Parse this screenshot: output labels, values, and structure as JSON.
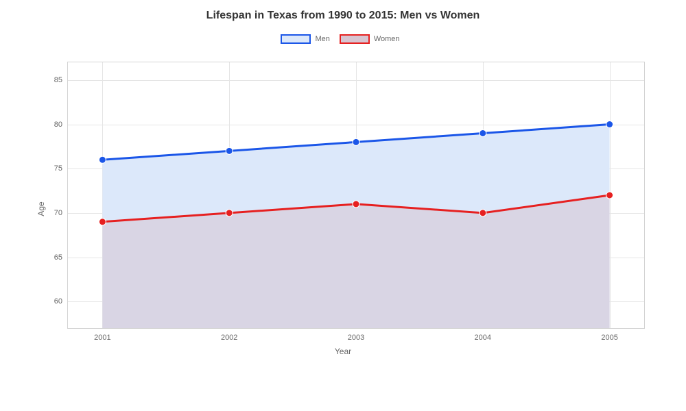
{
  "chart": {
    "type": "area-line",
    "title": "Lifespan in Texas from 1990 to 2015: Men vs Women",
    "title_fontsize": 16,
    "title_color": "#333333",
    "background_color": "#ffffff",
    "grid_color": "#e5e5e5",
    "border_color": "#d3d3d3",
    "x": {
      "label": "Year",
      "categories": [
        "2001",
        "2002",
        "2003",
        "2004",
        "2005"
      ],
      "label_fontsize": 12,
      "tick_fontsize": 11,
      "tick_color": "#666666"
    },
    "y": {
      "label": "Age",
      "min": 57,
      "max": 87,
      "ticks": [
        60,
        65,
        70,
        75,
        80,
        85
      ],
      "label_fontsize": 12,
      "tick_fontsize": 11,
      "tick_color": "#666666"
    },
    "legend": {
      "position": "top-center",
      "label_fontsize": 11,
      "swatch_width": 44,
      "swatch_height": 14
    },
    "series": [
      {
        "name": "Men",
        "values": [
          76,
          77,
          78,
          79,
          80
        ],
        "line_color": "#1b56e8",
        "fill_color": "#dce8fa",
        "fill_opacity": 1,
        "line_width": 3,
        "marker": "circle",
        "marker_size": 5
      },
      {
        "name": "Women",
        "values": [
          69,
          70,
          71,
          70,
          72
        ],
        "line_color": "#e62020",
        "fill_color": "#d7c5d1",
        "fill_opacity": 0.55,
        "line_width": 3,
        "marker": "circle",
        "marker_size": 5
      }
    ]
  }
}
